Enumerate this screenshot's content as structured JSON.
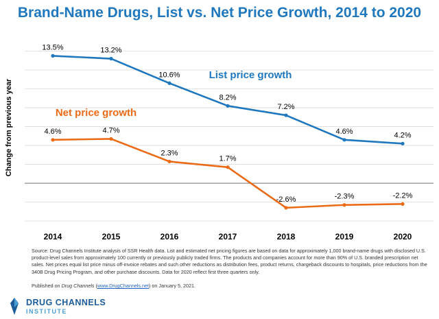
{
  "chart_data": {
    "type": "line",
    "title": "Brand-Name Drugs, List vs. Net Price Growth, 2014 to 2020",
    "ylabel": "Change from previous year",
    "xlabel": "",
    "categories": [
      "2014",
      "2015",
      "2016",
      "2017",
      "2018",
      "2019",
      "2020"
    ],
    "ylim": [
      -4.5,
      16
    ],
    "grid": true,
    "series": [
      {
        "name": "List price growth",
        "color": "#1f77bd",
        "values": [
          13.5,
          13.2,
          10.6,
          8.2,
          7.2,
          4.6,
          4.2
        ],
        "labels": [
          "13.5%",
          "13.2%",
          "10.6%",
          "8.2%",
          "7.2%",
          "4.6%",
          "4.2%"
        ]
      },
      {
        "name": "Net price growth",
        "color": "#ea6a15",
        "values": [
          4.6,
          4.7,
          2.3,
          1.7,
          -2.6,
          -2.3,
          -2.2
        ],
        "labels": [
          "4.6%",
          "4.7%",
          "2.3%",
          "1.7%",
          "-2.6%",
          "-2.3%",
          "-2.2%"
        ]
      }
    ]
  },
  "footer": {
    "source": "Source: Drug Channels Institute analysis of SSR Health data. List and estimated net pricing figures are based on data for approximately 1,000 brand-name drugs with disclosed U.S. product-level sales from approximately 100 currently or previously publicly traded firms. The products and companies account for more than 90% of U.S. branded prescription net sales. Net prices equal list price minus off-invoice rebates and such other reductions as distribution fees, product returns, chargeback discounts to hospitals, price reductions from the 340B Drug Pricing Program, and other purchase discounts. Data for 2020 reflect first three quarters only.",
    "published_prefix": "Published on ",
    "published_source": "Drug Channels",
    "published_open": " (",
    "published_link": "www.DrugChannels.net",
    "published_suffix": ") on January 5, 2021."
  },
  "logo": {
    "line1": "DRUG CHANNELS",
    "line2": "INSTITUTE",
    "color_dark": "#1c5c99",
    "color_light": "#4a9ed6"
  }
}
